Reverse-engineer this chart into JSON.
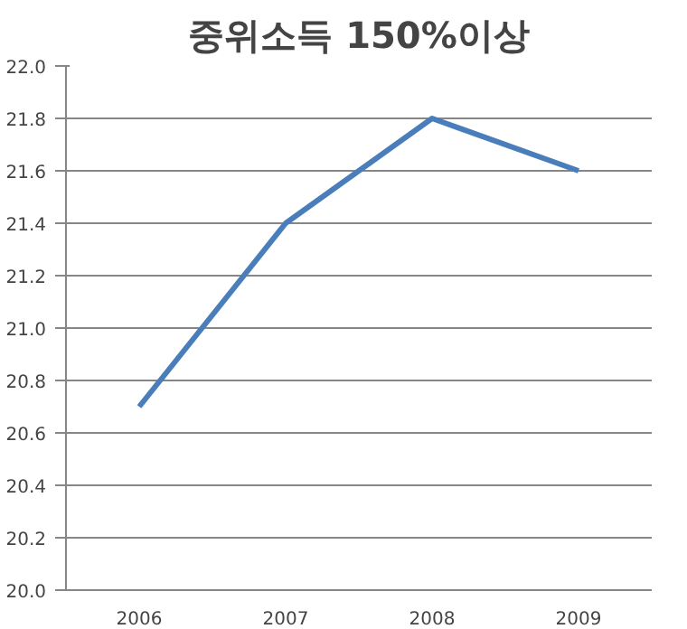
{
  "chart_data": {
    "type": "line",
    "title": "중위소득 150%이상",
    "categories": [
      "2006",
      "2007",
      "2008",
      "2009"
    ],
    "series": [
      {
        "color": "#4a7ebb",
        "values": [
          20.7,
          21.4,
          21.8,
          21.6
        ]
      }
    ],
    "ylim": [
      20.0,
      22.0
    ],
    "yticks": [
      {
        "value": 20.0,
        "label": "20.0"
      },
      {
        "value": 20.2,
        "label": "20.2"
      },
      {
        "value": 20.4,
        "label": "20.4"
      },
      {
        "value": 20.6,
        "label": "20.6"
      },
      {
        "value": 20.8,
        "label": "20.8"
      },
      {
        "value": 21.0,
        "label": "21.0"
      },
      {
        "value": 21.2,
        "label": "21.2"
      },
      {
        "value": 21.4,
        "label": "21.4"
      },
      {
        "value": 21.6,
        "label": "21.6"
      },
      {
        "value": 21.8,
        "label": "21.8"
      },
      {
        "value": 22.0,
        "label": "22.0"
      }
    ],
    "grid": "y",
    "marker": "none",
    "line_style": "solid"
  }
}
